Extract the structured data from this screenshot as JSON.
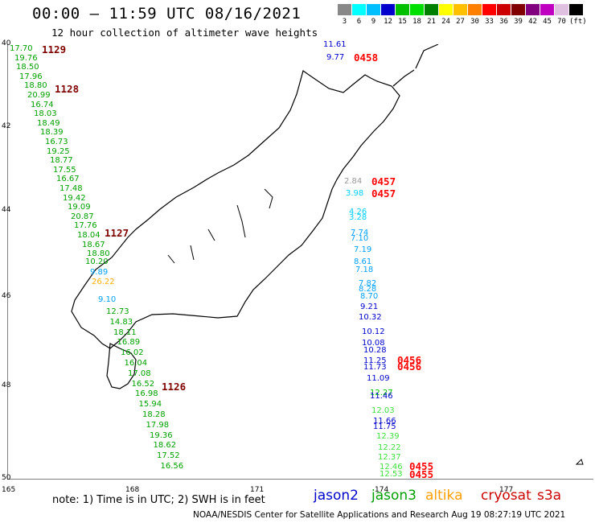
{
  "title": "00:00 – 11:59 UTC 08/16/2021",
  "subtitle": "12 hour collection of altimeter wave heights",
  "scale": {
    "colors": [
      "#888888",
      "#00ffff",
      "#00bfff",
      "#0000cc",
      "#00c000",
      "#00e000",
      "#008000",
      "#ffff00",
      "#ffc000",
      "#ff8000",
      "#ff0000",
      "#cc0000",
      "#800000",
      "#800080",
      "#c000c0",
      "#e0c0e0",
      "#000000"
    ],
    "labels": [
      "3",
      "6",
      "9",
      "12",
      "15",
      "18",
      "21",
      "24",
      "27",
      "30",
      "33",
      "36",
      "39",
      "42",
      "45",
      "70",
      "(ft)"
    ]
  },
  "axes": {
    "lon_ticks": [
      "165",
      "168",
      "171",
      "174",
      "177"
    ],
    "lat_ticks": [
      "40",
      "42",
      "44",
      "46",
      "48",
      "50"
    ]
  },
  "tracks": [
    {
      "satellite": "jason3",
      "color": "#00a000",
      "values": [
        "17.70",
        "19.76",
        "18.50",
        "17.96",
        "18.80",
        "20.99",
        "16.74",
        "18.03",
        "18.49",
        "18.39",
        "16.73",
        "19.25",
        "18.77",
        "17.55",
        "16.67",
        "17.48",
        "19.42",
        "19.09",
        "20.87",
        "17.76",
        "18.04",
        "18.67",
        "18.80"
      ],
      "time_labels": [
        {
          "text": "1129",
          "color": "#800000"
        },
        {
          "text": "1128",
          "color": "#800000"
        },
        {
          "text": "1127",
          "color": "#800000"
        }
      ]
    },
    {
      "satellite": "altika",
      "color": "#ffb000",
      "values": [
        "26.22"
      ]
    },
    {
      "satellite": "jason3-south",
      "color": "#00a000",
      "values": [
        "12.73",
        "14.83",
        "18.11",
        "16.89",
        "16.02",
        "16.04",
        "17.08",
        "16.52",
        "16.98",
        "15.94",
        "18.28",
        "17.98",
        "19.36",
        "18.62",
        "17.52",
        "16.56"
      ],
      "time_labels": [
        {
          "text": "1126",
          "color": "#800000"
        }
      ]
    },
    {
      "satellite": "jason2",
      "color": "#0000cc",
      "values": [
        "11.61",
        "9.77"
      ],
      "time_labels": [
        {
          "text": "0458",
          "color": "#ff0000"
        }
      ]
    },
    {
      "satellite": "cryosat-east",
      "values": [
        {
          "text": "2.84",
          "color": "#999999"
        },
        {
          "text": "3.98",
          "color": "#00d0ff"
        },
        {
          "text": "4.26",
          "color": "#00d0ff"
        },
        {
          "text": "3.28",
          "color": "#00d0ff"
        },
        {
          "text": "7.74",
          "color": "#00a0ff"
        },
        {
          "text": "7.10",
          "color": "#00a0ff"
        },
        {
          "text": "7.19",
          "color": "#00a0ff"
        },
        {
          "text": "8.61",
          "color": "#00a0ff"
        },
        {
          "text": "7.18",
          "color": "#00a0ff"
        },
        {
          "text": "7.82",
          "color": "#00a0ff"
        },
        {
          "text": "8.28",
          "color": "#00a0ff"
        },
        {
          "text": "8.70",
          "color": "#00a0ff"
        },
        {
          "text": "9.21",
          "color": "#0000cc"
        },
        {
          "text": "10.32",
          "color": "#0000cc"
        },
        {
          "text": "10.12",
          "color": "#0000cc"
        },
        {
          "text": "10.08",
          "color": "#0000cc"
        },
        {
          "text": "10.28",
          "color": "#0000cc"
        },
        {
          "text": "11.25",
          "color": "#0000cc"
        },
        {
          "text": "11.73",
          "color": "#0000cc"
        },
        {
          "text": "11.09",
          "color": "#0000cc"
        },
        {
          "text": "12.27",
          "color": "#00c000"
        },
        {
          "text": "11.46",
          "color": "#0000cc"
        },
        {
          "text": "12.03",
          "color": "#40e040"
        },
        {
          "text": "11.66",
          "color": "#0000cc"
        },
        {
          "text": "11.75",
          "color": "#0000cc"
        },
        {
          "text": "12.39",
          "color": "#40e040"
        },
        {
          "text": "12.22",
          "color": "#40e040"
        },
        {
          "text": "12.37",
          "color": "#40e040"
        },
        {
          "text": "12.46",
          "color": "#40e040"
        },
        {
          "text": "12.53",
          "color": "#40e040"
        }
      ],
      "time_labels": [
        {
          "text": "0457",
          "color": "#ff0000"
        },
        {
          "text": "0457",
          "color": "#ff0000"
        },
        {
          "text": "0456",
          "color": "#ff0000"
        },
        {
          "text": "0456",
          "color": "#ff0000"
        },
        {
          "text": "0455",
          "color": "#ff0000"
        },
        {
          "text": "0455",
          "color": "#ff0000"
        }
      ]
    },
    {
      "satellite": "misc",
      "values": [
        {
          "text": "10.20",
          "color": "#00a000"
        },
        {
          "text": "9.89",
          "color": "#00a0ff"
        },
        {
          "text": "9.10",
          "color": "#00a0ff"
        }
      ]
    }
  ],
  "note": "note: 1) Time is in UTC; 2) SWH is in feet",
  "legend": [
    {
      "name": "jason2",
      "color": "#0000cc"
    },
    {
      "name": "jason3",
      "color": "#00a000"
    },
    {
      "name": "altika",
      "color": "#ffa000"
    },
    {
      "name": "cryosat",
      "color": "#cc0000"
    },
    {
      "name": "s3a",
      "color": "#cc0000"
    }
  ],
  "footer": "NOAA/NESDIS Center for Satellite Applications and Research   Aug 19 08:27:19 UTC 2021"
}
